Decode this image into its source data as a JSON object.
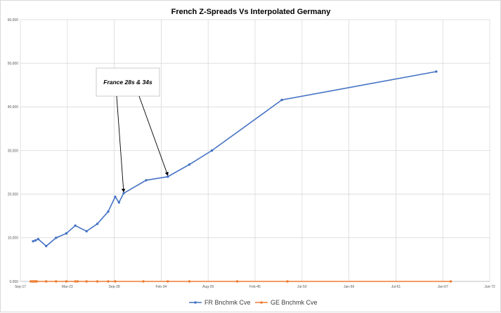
{
  "chart_data": {
    "type": "line",
    "title": "French Z-Spreads Vs Interpolated Germany",
    "xlabel": "",
    "ylabel": "",
    "x_tick_labels": [
      "Sep-17",
      "Mar-23",
      "Sep-28",
      "Feb-34",
      "Aug-39",
      "Feb-45",
      "Jul-50",
      "Jan-56",
      "Jul-61",
      "Jan-67",
      "Jun-72"
    ],
    "y_tick_labels": [
      "0.000",
      "10,000",
      "20,000",
      "30,000",
      "40,000",
      "50,000",
      "60,000"
    ],
    "xlim": [
      0,
      10
    ],
    "ylim": [
      0,
      60000
    ],
    "grid": true,
    "legend_position": "bottom",
    "series": [
      {
        "name": "FR Bnchmk Cve",
        "color": "#4472c4",
        "x": [
          0.27,
          0.32,
          0.38,
          0.55,
          0.76,
          0.98,
          1.17,
          1.41,
          1.64,
          1.87,
          2.02,
          2.1,
          2.2,
          2.68,
          3.14,
          3.6,
          4.08,
          5.57,
          8.86
        ],
        "y": [
          9200,
          9400,
          9700,
          8100,
          10000,
          11000,
          12800,
          11500,
          13200,
          16000,
          19400,
          18100,
          20200,
          23200,
          24000,
          26800,
          30000,
          41600,
          48100
        ]
      },
      {
        "name": "GE Bnchmk Cve",
        "color": "#ed7d31",
        "x": [
          0.22,
          0.26,
          0.29,
          0.32,
          0.35,
          0.55,
          0.76,
          0.98,
          1.17,
          1.22,
          1.41,
          1.64,
          1.87,
          2.02,
          2.62,
          3.14,
          3.6,
          4.62,
          5.69,
          9.17
        ],
        "y": [
          0,
          0,
          0,
          0,
          0,
          0,
          0,
          0,
          0,
          0,
          0,
          0,
          0,
          0,
          0,
          0,
          0,
          0,
          0,
          0
        ]
      }
    ],
    "annotations": [
      {
        "text": "France 28s & 34s",
        "arrow_targets": [
          [
            2.2,
            20200
          ],
          [
            3.14,
            24000
          ]
        ]
      }
    ]
  }
}
